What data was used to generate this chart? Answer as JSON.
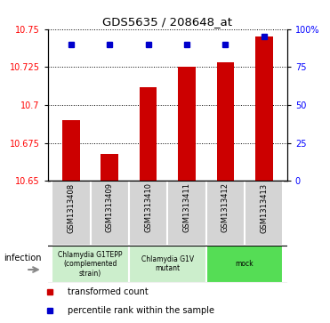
{
  "title": "GDS5635 / 208648_at",
  "samples": [
    "GSM1313408",
    "GSM1313409",
    "GSM1313410",
    "GSM1313411",
    "GSM1313412",
    "GSM1313413"
  ],
  "bar_values": [
    10.69,
    10.668,
    10.712,
    10.725,
    10.728,
    10.745
  ],
  "percentile_values": [
    90,
    90,
    90,
    90,
    90,
    95
  ],
  "ylim_left": [
    10.65,
    10.75
  ],
  "ylim_right": [
    0,
    100
  ],
  "yticks_left": [
    10.65,
    10.675,
    10.7,
    10.725,
    10.75
  ],
  "yticks_right": [
    0,
    25,
    50,
    75,
    100
  ],
  "bar_color": "#cc0000",
  "dot_color": "#0000cc",
  "group_configs": [
    {
      "indices": [
        0,
        1
      ],
      "label": "Chlamydia G1TEPP\n(complemented\nstrain)",
      "color": "#cceecc"
    },
    {
      "indices": [
        2,
        3
      ],
      "label": "Chlamydia G1V\nmutant",
      "color": "#cceecc"
    },
    {
      "indices": [
        4,
        5
      ],
      "label": "mock",
      "color": "#55dd55"
    }
  ],
  "infection_label": "infection",
  "legend_bar_label": "transformed count",
  "legend_dot_label": "percentile rank within the sample",
  "bar_width": 0.45,
  "baseline": 10.65
}
